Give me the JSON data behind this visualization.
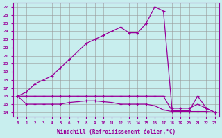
{
  "xlabel": "Windchill (Refroidissement éolien,°C)",
  "bg_color": "#c8eeee",
  "line_color": "#990099",
  "xlim": [
    -0.5,
    23.5
  ],
  "ylim": [
    13.5,
    27.5
  ],
  "xticks": [
    0,
    1,
    2,
    3,
    4,
    5,
    6,
    7,
    8,
    9,
    10,
    11,
    12,
    13,
    14,
    15,
    16,
    17,
    18,
    19,
    20,
    21,
    22,
    23
  ],
  "yticks": [
    14,
    15,
    16,
    17,
    18,
    19,
    20,
    21,
    22,
    23,
    24,
    25,
    26,
    27
  ],
  "line1_x": [
    0,
    1,
    2,
    3,
    4,
    5,
    6,
    7,
    8,
    9,
    10,
    11,
    12,
    13,
    14,
    15,
    16,
    17,
    18,
    19,
    20,
    21,
    22,
    23
  ],
  "line1_y": [
    16.0,
    16.0,
    16.0,
    16.0,
    16.0,
    16.0,
    16.0,
    16.0,
    16.0,
    16.0,
    16.0,
    16.0,
    16.0,
    16.0,
    16.0,
    16.0,
    16.0,
    16.0,
    14.2,
    14.2,
    14.2,
    16.0,
    14.5,
    14.0
  ],
  "line2_x": [
    0,
    1,
    2,
    3,
    4,
    5,
    6,
    7,
    8,
    9,
    10,
    11,
    12,
    13,
    14,
    15,
    16,
    17,
    18,
    19,
    20,
    21,
    22,
    23
  ],
  "line2_y": [
    16.0,
    15.0,
    15.0,
    15.0,
    15.0,
    15.0,
    15.2,
    15.3,
    15.4,
    15.4,
    15.3,
    15.2,
    15.0,
    15.0,
    15.0,
    15.0,
    14.8,
    14.3,
    14.1,
    14.1,
    14.1,
    14.1,
    14.1,
    14.0
  ],
  "line3_x": [
    0,
    1,
    2,
    3,
    4,
    5,
    6,
    7,
    8,
    9,
    10,
    11,
    12,
    13,
    14,
    15,
    16,
    17,
    18,
    19,
    20,
    21,
    22,
    23
  ],
  "line3_y": [
    16.0,
    16.5,
    17.5,
    18.0,
    18.5,
    19.5,
    20.5,
    21.5,
    22.5,
    23.0,
    23.5,
    24.0,
    24.5,
    23.8,
    23.8,
    25.0,
    27.0,
    26.5,
    14.5,
    14.5,
    14.5,
    15.0,
    14.5,
    14.0
  ],
  "grid_color": "#999999",
  "marker": "+"
}
